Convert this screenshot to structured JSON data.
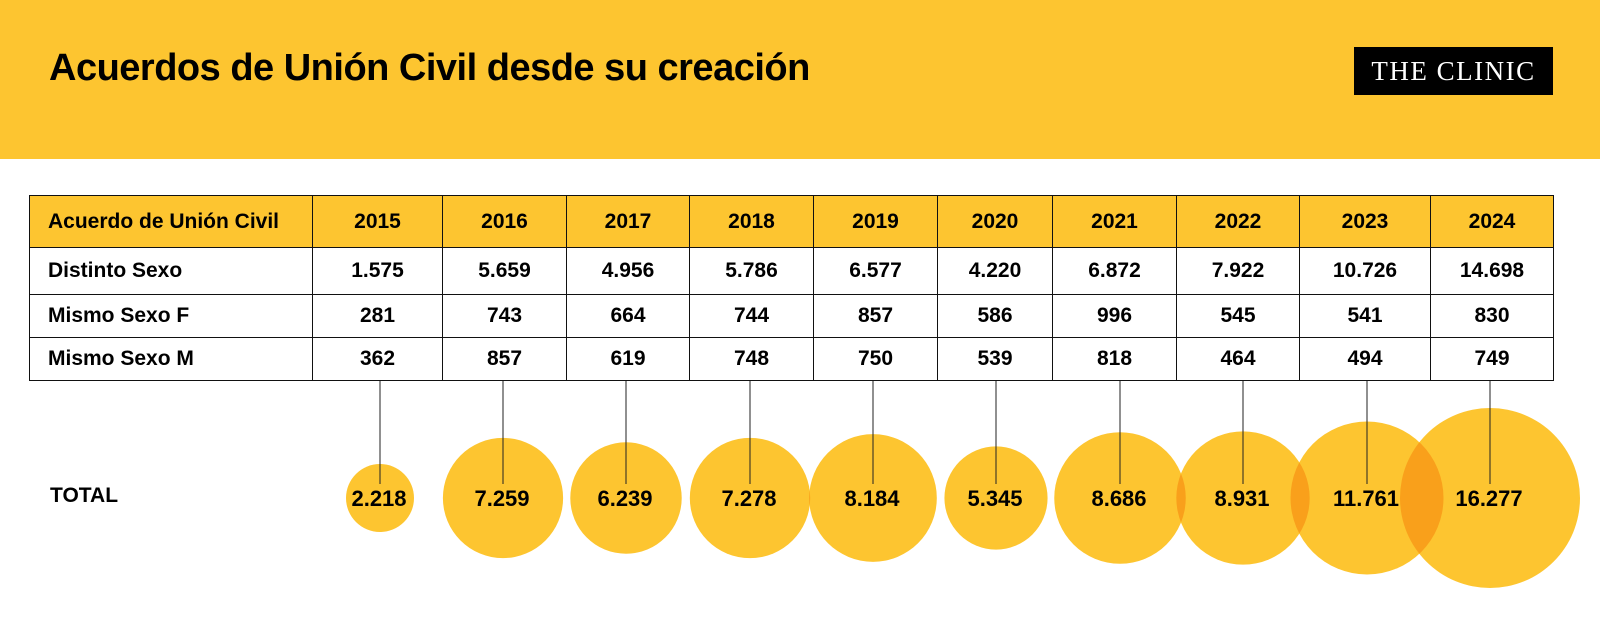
{
  "header": {
    "title": "Acuerdos de Unión Civil desde su creación",
    "logo": "THE CLINIC"
  },
  "table": {
    "corner_label": "Acuerdo de Unión Civil",
    "years": [
      "2015",
      "2016",
      "2017",
      "2018",
      "2019",
      "2020",
      "2021",
      "2022",
      "2023",
      "2024"
    ],
    "rows": [
      {
        "label": "Distinto Sexo",
        "values": [
          "1.575",
          "5.659",
          "4.956",
          "5.786",
          "6.577",
          "4.220",
          "6.872",
          "7.922",
          "10.726",
          "14.698"
        ]
      },
      {
        "label": "Mismo Sexo F",
        "values": [
          "281",
          "743",
          "664",
          "744",
          "857",
          "586",
          "996",
          "545",
          "541",
          "830"
        ]
      },
      {
        "label": "Mismo Sexo M",
        "values": [
          "362",
          "857",
          "619",
          "748",
          "750",
          "539",
          "818",
          "464",
          "494",
          "749"
        ]
      }
    ]
  },
  "chart_data": {
    "type": "table",
    "title": "Acuerdos de Unión Civil desde su creación",
    "categories": [
      "2015",
      "2016",
      "2017",
      "2018",
      "2019",
      "2020",
      "2021",
      "2022",
      "2023",
      "2024"
    ],
    "series": [
      {
        "name": "Distinto Sexo",
        "values": [
          1575,
          5659,
          4956,
          5786,
          6577,
          4220,
          6872,
          7922,
          10726,
          14698
        ]
      },
      {
        "name": "Mismo Sexo F",
        "values": [
          281,
          743,
          664,
          744,
          857,
          586,
          996,
          545,
          541,
          830
        ]
      },
      {
        "name": "Mismo Sexo M",
        "values": [
          362,
          857,
          619,
          748,
          750,
          539,
          818,
          464,
          494,
          749
        ]
      }
    ],
    "totals": {
      "label": "TOTAL",
      "values": [
        2218,
        7259,
        6239,
        7278,
        8184,
        5345,
        8686,
        8931,
        11761,
        16277
      ],
      "labels": [
        "2.218",
        "7.259",
        "6.239",
        "7.278",
        "8.184",
        "5.345",
        "8.686",
        "8.931",
        "11.761",
        "16.277"
      ]
    }
  },
  "colors": {
    "accent": "#fdc530",
    "bubble": "#fdc530",
    "bubble_overlap": "#f9a01b"
  }
}
